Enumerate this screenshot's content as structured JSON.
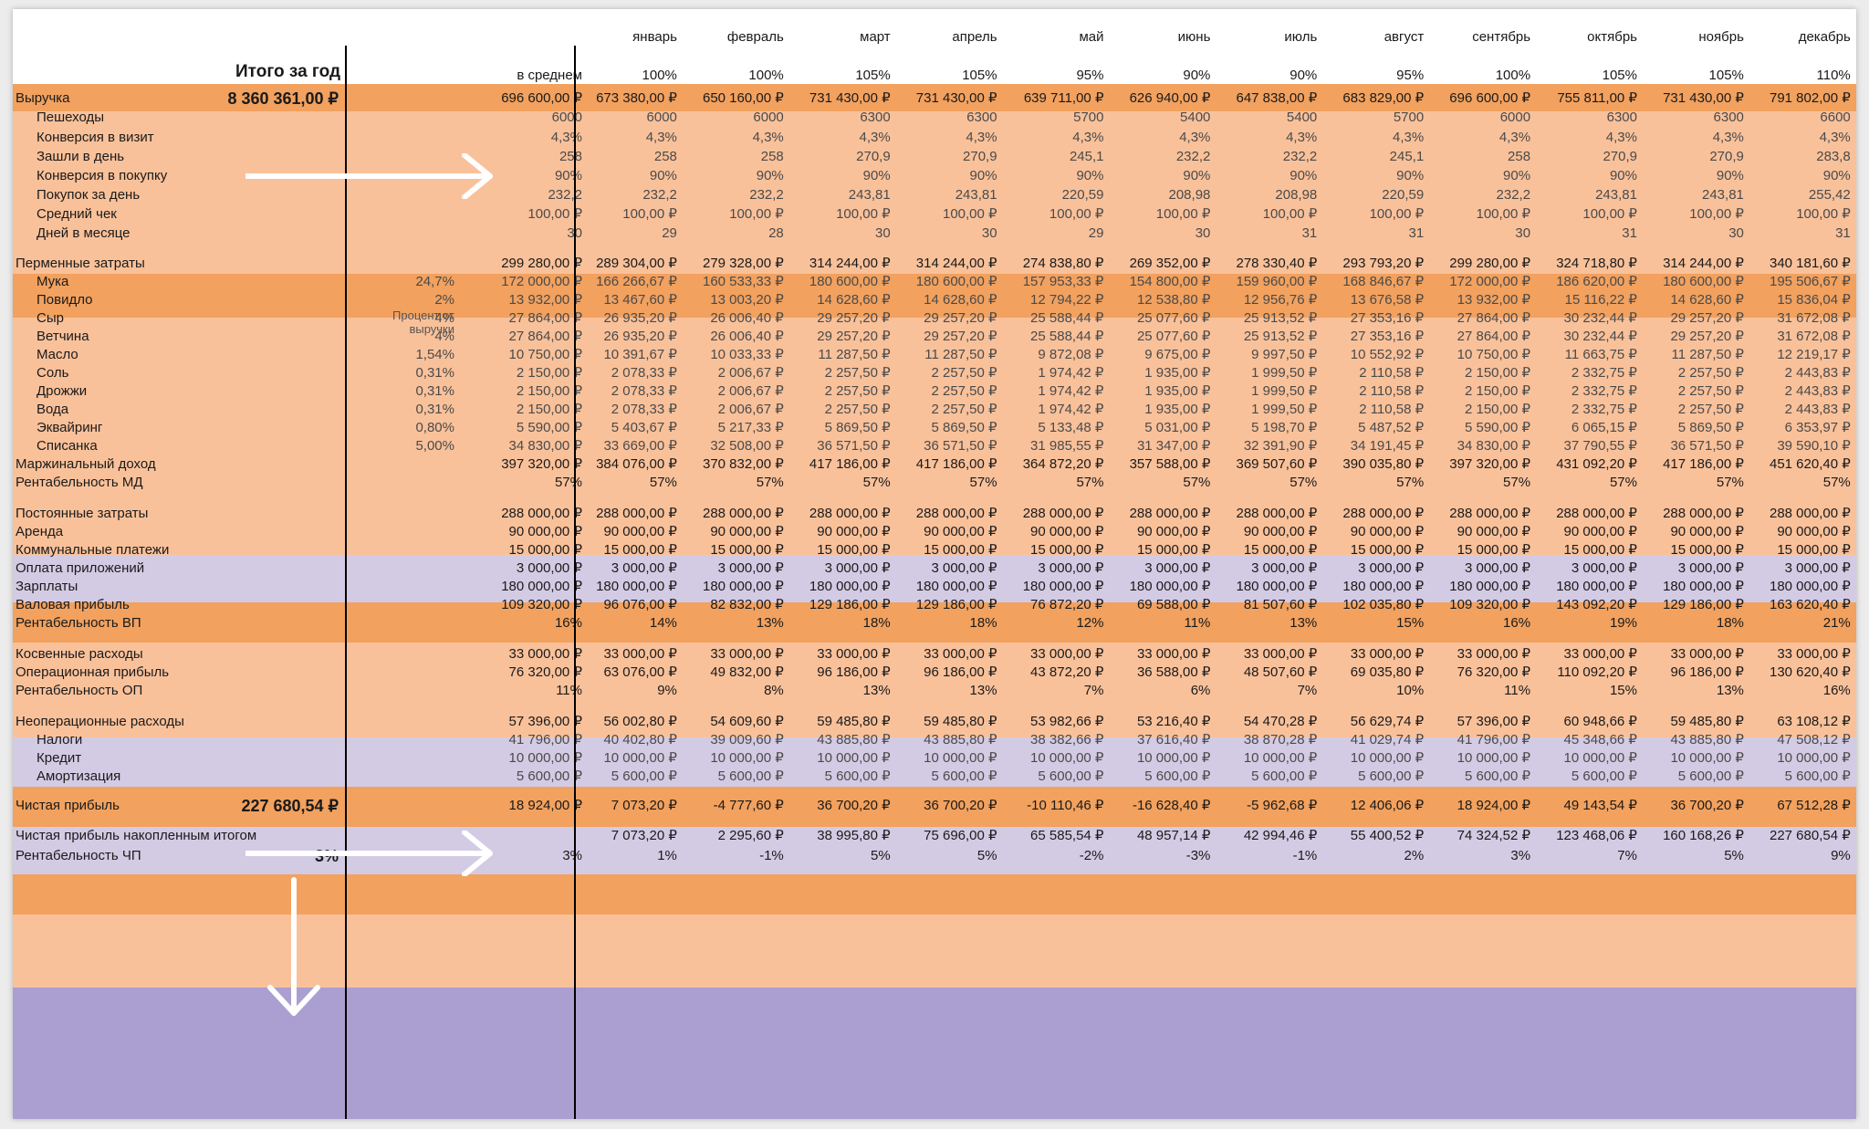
{
  "header": {
    "total_label": "Итого за год",
    "avg_label": "в среднем",
    "months": [
      "январь",
      "февраль",
      "март",
      "апрель",
      "май",
      "июнь",
      "июль",
      "август",
      "сентябрь",
      "октябрь",
      "ноябрь",
      "декабрь"
    ],
    "seasonality": [
      "100%",
      "100%",
      "105%",
      "105%",
      "95%",
      "90%",
      "90%",
      "95%",
      "100%",
      "105%",
      "105%",
      "110%"
    ]
  },
  "percent_header": "Процент от выручки",
  "rows": [
    {
      "label": "Выручка",
      "style": "main",
      "total": "8 360 361,00 ₽",
      "pct": "",
      "avg": "696 600,00 ₽",
      "values": [
        "673 380,00 ₽",
        "650 160,00 ₽",
        "731 430,00 ₽",
        "731 430,00 ₽",
        "639 711,00 ₽",
        "626 940,00 ₽",
        "647 838,00 ₽",
        "683 829,00 ₽",
        "696 600,00 ₽",
        "755 811,00 ₽",
        "731 430,00 ₽",
        "791 802,00 ₽"
      ]
    },
    {
      "label": "Пешеходы",
      "style": "sub",
      "total": "",
      "pct": "",
      "avg": "6000",
      "values": [
        "6000",
        "6000",
        "6300",
        "6300",
        "5700",
        "5400",
        "5400",
        "5700",
        "6000",
        "6300",
        "6300",
        "6600"
      ]
    },
    {
      "label": "Конверсия в визит",
      "style": "sub",
      "total": "",
      "pct": "",
      "avg": "4,3%",
      "values": [
        "4,3%",
        "4,3%",
        "4,3%",
        "4,3%",
        "4,3%",
        "4,3%",
        "4,3%",
        "4,3%",
        "4,3%",
        "4,3%",
        "4,3%",
        "4,3%"
      ]
    },
    {
      "label": "Зашли в день",
      "style": "sub",
      "total": "",
      "pct": "",
      "avg": "258",
      "values": [
        "258",
        "258",
        "270,9",
        "270,9",
        "245,1",
        "232,2",
        "232,2",
        "245,1",
        "258",
        "270,9",
        "270,9",
        "283,8"
      ]
    },
    {
      "label": "Конверсия в покупку",
      "style": "sub",
      "total": "",
      "pct": "",
      "avg": "90%",
      "values": [
        "90%",
        "90%",
        "90%",
        "90%",
        "90%",
        "90%",
        "90%",
        "90%",
        "90%",
        "90%",
        "90%",
        "90%"
      ]
    },
    {
      "label": "Покупок за день",
      "style": "sub",
      "total": "",
      "pct": "",
      "avg": "232,2",
      "values": [
        "232,2",
        "232,2",
        "243,81",
        "243,81",
        "220,59",
        "208,98",
        "208,98",
        "220,59",
        "232,2",
        "243,81",
        "243,81",
        "255,42"
      ]
    },
    {
      "label": "Средний чек",
      "style": "sub",
      "total": "",
      "pct": "",
      "avg": "100,00 ₽",
      "values": [
        "100,00 ₽",
        "100,00 ₽",
        "100,00 ₽",
        "100,00 ₽",
        "100,00 ₽",
        "100,00 ₽",
        "100,00 ₽",
        "100,00 ₽",
        "100,00 ₽",
        "100,00 ₽",
        "100,00 ₽",
        "100,00 ₽"
      ]
    },
    {
      "label": "Дней в месяце",
      "style": "sub",
      "total": "",
      "pct": "",
      "avg": "30",
      "values": [
        "29",
        "28",
        "30",
        "30",
        "29",
        "30",
        "31",
        "31",
        "30",
        "31",
        "30",
        "31"
      ]
    },
    {
      "label": "Перменные затраты",
      "style": "main",
      "total": "",
      "pct": "",
      "avg": "299 280,00 ₽",
      "values": [
        "289 304,00 ₽",
        "279 328,00 ₽",
        "314 244,00 ₽",
        "314 244,00 ₽",
        "274 838,80 ₽",
        "269 352,00 ₽",
        "278 330,40 ₽",
        "293 793,20 ₽",
        "299 280,00 ₽",
        "324 718,80 ₽",
        "314 244,00 ₽",
        "340 181,60 ₽"
      ]
    },
    {
      "label": "Мука",
      "style": "sub",
      "total": "",
      "pct": "24,7%",
      "avg": "172 000,00 ₽",
      "values": [
        "166 266,67 ₽",
        "160 533,33 ₽",
        "180 600,00 ₽",
        "180 600,00 ₽",
        "157 953,33 ₽",
        "154 800,00 ₽",
        "159 960,00 ₽",
        "168 846,67 ₽",
        "172 000,00 ₽",
        "186 620,00 ₽",
        "180 600,00 ₽",
        "195 506,67 ₽"
      ]
    },
    {
      "label": "Повидло",
      "style": "sub",
      "total": "",
      "pct": "2%",
      "avg": "13 932,00 ₽",
      "values": [
        "13 467,60 ₽",
        "13 003,20 ₽",
        "14 628,60 ₽",
        "14 628,60 ₽",
        "12 794,22 ₽",
        "12 538,80 ₽",
        "12 956,76 ₽",
        "13 676,58 ₽",
        "13 932,00 ₽",
        "15 116,22 ₽",
        "14 628,60 ₽",
        "15 836,04 ₽"
      ]
    },
    {
      "label": "Сыр",
      "style": "sub",
      "total": "",
      "pct": "4%",
      "avg": "27 864,00 ₽",
      "values": [
        "26 935,20 ₽",
        "26 006,40 ₽",
        "29 257,20 ₽",
        "29 257,20 ₽",
        "25 588,44 ₽",
        "25 077,60 ₽",
        "25 913,52 ₽",
        "27 353,16 ₽",
        "27 864,00 ₽",
        "30 232,44 ₽",
        "29 257,20 ₽",
        "31 672,08 ₽"
      ]
    },
    {
      "label": "Ветчина",
      "style": "sub",
      "total": "",
      "pct": "4%",
      "avg": "27 864,00 ₽",
      "values": [
        "26 935,20 ₽",
        "26 006,40 ₽",
        "29 257,20 ₽",
        "29 257,20 ₽",
        "25 588,44 ₽",
        "25 077,60 ₽",
        "25 913,52 ₽",
        "27 353,16 ₽",
        "27 864,00 ₽",
        "30 232,44 ₽",
        "29 257,20 ₽",
        "31 672,08 ₽"
      ]
    },
    {
      "label": "Масло",
      "style": "sub",
      "total": "",
      "pct": "1,54%",
      "avg": "10 750,00 ₽",
      "values": [
        "10 391,67 ₽",
        "10 033,33 ₽",
        "11 287,50 ₽",
        "11 287,50 ₽",
        "9 872,08 ₽",
        "9 675,00 ₽",
        "9 997,50 ₽",
        "10 552,92 ₽",
        "10 750,00 ₽",
        "11 663,75 ₽",
        "11 287,50 ₽",
        "12 219,17 ₽"
      ]
    },
    {
      "label": "Соль",
      "style": "sub",
      "total": "",
      "pct": "0,31%",
      "avg": "2 150,00 ₽",
      "values": [
        "2 078,33 ₽",
        "2 006,67 ₽",
        "2 257,50 ₽",
        "2 257,50 ₽",
        "1 974,42 ₽",
        "1 935,00 ₽",
        "1 999,50 ₽",
        "2 110,58 ₽",
        "2 150,00 ₽",
        "2 332,75 ₽",
        "2 257,50 ₽",
        "2 443,83 ₽"
      ]
    },
    {
      "label": "Дрожжи",
      "style": "sub",
      "total": "",
      "pct": "0,31%",
      "avg": "2 150,00 ₽",
      "values": [
        "2 078,33 ₽",
        "2 006,67 ₽",
        "2 257,50 ₽",
        "2 257,50 ₽",
        "1 974,42 ₽",
        "1 935,00 ₽",
        "1 999,50 ₽",
        "2 110,58 ₽",
        "2 150,00 ₽",
        "2 332,75 ₽",
        "2 257,50 ₽",
        "2 443,83 ₽"
      ]
    },
    {
      "label": "Вода",
      "style": "sub",
      "total": "",
      "pct": "0,31%",
      "avg": "2 150,00 ₽",
      "values": [
        "2 078,33 ₽",
        "2 006,67 ₽",
        "2 257,50 ₽",
        "2 257,50 ₽",
        "1 974,42 ₽",
        "1 935,00 ₽",
        "1 999,50 ₽",
        "2 110,58 ₽",
        "2 150,00 ₽",
        "2 332,75 ₽",
        "2 257,50 ₽",
        "2 443,83 ₽"
      ]
    },
    {
      "label": "Эквайринг",
      "style": "sub",
      "total": "",
      "pct": "0,80%",
      "avg": "5 590,00 ₽",
      "values": [
        "5 403,67 ₽",
        "5 217,33 ₽",
        "5 869,50 ₽",
        "5 869,50 ₽",
        "5 133,48 ₽",
        "5 031,00 ₽",
        "5 198,70 ₽",
        "5 487,52 ₽",
        "5 590,00 ₽",
        "6 065,15 ₽",
        "5 869,50 ₽",
        "6 353,97 ₽"
      ]
    },
    {
      "label": "Списанка",
      "style": "sub",
      "total": "",
      "pct": "5,00%",
      "avg": "34 830,00 ₽",
      "values": [
        "33 669,00 ₽",
        "32 508,00 ₽",
        "36 571,50 ₽",
        "36 571,50 ₽",
        "31 985,55 ₽",
        "31 347,00 ₽",
        "32 391,90 ₽",
        "34 191,45 ₽",
        "34 830,00 ₽",
        "37 790,55 ₽",
        "36 571,50 ₽",
        "39 590,10 ₽"
      ]
    },
    {
      "label": "Маржинальный доход",
      "style": "lav",
      "total": "",
      "pct": "",
      "avg": "397 320,00 ₽",
      "values": [
        "384 076,00 ₽",
        "370 832,00 ₽",
        "417 186,00 ₽",
        "417 186,00 ₽",
        "364 872,20 ₽",
        "357 588,00 ₽",
        "369 507,60 ₽",
        "390 035,80 ₽",
        "397 320,00 ₽",
        "431 092,20 ₽",
        "417 186,00 ₽",
        "451 620,40 ₽"
      ]
    },
    {
      "label": "Рентабельность МД",
      "style": "lav",
      "total": "",
      "pct": "",
      "avg": "57%",
      "values": [
        "57%",
        "57%",
        "57%",
        "57%",
        "57%",
        "57%",
        "57%",
        "57%",
        "57%",
        "57%",
        "57%",
        "57%"
      ]
    },
    {
      "label": "Постоянные затраты",
      "style": "main",
      "total": "",
      "pct": "",
      "avg": "288 000,00 ₽",
      "values": [
        "288 000,00 ₽",
        "288 000,00 ₽",
        "288 000,00 ₽",
        "288 000,00 ₽",
        "288 000,00 ₽",
        "288 000,00 ₽",
        "288 000,00 ₽",
        "288 000,00 ₽",
        "288 000,00 ₽",
        "288 000,00 ₽",
        "288 000,00 ₽",
        "288 000,00 ₽"
      ]
    },
    {
      "label": "Аренда",
      "style": "sub2",
      "total": "",
      "pct": "",
      "avg": "90 000,00 ₽",
      "values": [
        "90 000,00 ₽",
        "90 000,00 ₽",
        "90 000,00 ₽",
        "90 000,00 ₽",
        "90 000,00 ₽",
        "90 000,00 ₽",
        "90 000,00 ₽",
        "90 000,00 ₽",
        "90 000,00 ₽",
        "90 000,00 ₽",
        "90 000,00 ₽",
        "90 000,00 ₽"
      ]
    },
    {
      "label": "Коммунальные платежи",
      "style": "sub2",
      "total": "",
      "pct": "",
      "avg": "15 000,00 ₽",
      "values": [
        "15 000,00 ₽",
        "15 000,00 ₽",
        "15 000,00 ₽",
        "15 000,00 ₽",
        "15 000,00 ₽",
        "15 000,00 ₽",
        "15 000,00 ₽",
        "15 000,00 ₽",
        "15 000,00 ₽",
        "15 000,00 ₽",
        "15 000,00 ₽",
        "15 000,00 ₽"
      ]
    },
    {
      "label": "Оплата приложений",
      "style": "sub2",
      "total": "",
      "pct": "",
      "avg": "3 000,00 ₽",
      "values": [
        "3 000,00 ₽",
        "3 000,00 ₽",
        "3 000,00 ₽",
        "3 000,00 ₽",
        "3 000,00 ₽",
        "3 000,00 ₽",
        "3 000,00 ₽",
        "3 000,00 ₽",
        "3 000,00 ₽",
        "3 000,00 ₽",
        "3 000,00 ₽",
        "3 000,00 ₽"
      ]
    },
    {
      "label": "Зарплаты",
      "style": "sub2",
      "total": "",
      "pct": "",
      "avg": "180 000,00 ₽",
      "values": [
        "180 000,00 ₽",
        "180 000,00 ₽",
        "180 000,00 ₽",
        "180 000,00 ₽",
        "180 000,00 ₽",
        "180 000,00 ₽",
        "180 000,00 ₽",
        "180 000,00 ₽",
        "180 000,00 ₽",
        "180 000,00 ₽",
        "180 000,00 ₽",
        "180 000,00 ₽"
      ]
    },
    {
      "label": "Валовая прибыль",
      "style": "lav",
      "total": "",
      "pct": "",
      "avg": "109 320,00 ₽",
      "values": [
        "96 076,00 ₽",
        "82 832,00 ₽",
        "129 186,00 ₽",
        "129 186,00 ₽",
        "76 872,20 ₽",
        "69 588,00 ₽",
        "81 507,60 ₽",
        "102 035,80 ₽",
        "109 320,00 ₽",
        "143 092,20 ₽",
        "129 186,00 ₽",
        "163 620,40 ₽"
      ]
    },
    {
      "label": "Рентабельность ВП",
      "style": "lav",
      "total": "",
      "pct": "",
      "avg": "16%",
      "values": [
        "14%",
        "13%",
        "18%",
        "18%",
        "12%",
        "11%",
        "13%",
        "15%",
        "16%",
        "19%",
        "18%",
        "21%"
      ]
    },
    {
      "label": "Косвенные расходы",
      "style": "main",
      "total": "",
      "pct": "",
      "avg": "33 000,00 ₽",
      "values": [
        "33 000,00 ₽",
        "33 000,00 ₽",
        "33 000,00 ₽",
        "33 000,00 ₽",
        "33 000,00 ₽",
        "33 000,00 ₽",
        "33 000,00 ₽",
        "33 000,00 ₽",
        "33 000,00 ₽",
        "33 000,00 ₽",
        "33 000,00 ₽",
        "33 000,00 ₽"
      ]
    },
    {
      "label": "Операционная прибыль",
      "style": "lav",
      "total": "",
      "pct": "",
      "avg": "76 320,00 ₽",
      "values": [
        "63 076,00 ₽",
        "49 832,00 ₽",
        "96 186,00 ₽",
        "96 186,00 ₽",
        "43 872,20 ₽",
        "36 588,00 ₽",
        "48 507,60 ₽",
        "69 035,80 ₽",
        "76 320,00 ₽",
        "110 092,20 ₽",
        "96 186,00 ₽",
        "130 620,40 ₽"
      ]
    },
    {
      "label": "Рентабельность ОП",
      "style": "lav",
      "total": "",
      "pct": "",
      "avg": "11%",
      "values": [
        "9%",
        "8%",
        "13%",
        "13%",
        "7%",
        "6%",
        "7%",
        "10%",
        "11%",
        "15%",
        "13%",
        "16%"
      ]
    },
    {
      "label": "Неоперационные расходы",
      "style": "main",
      "total": "",
      "pct": "",
      "avg": "57 396,00 ₽",
      "values": [
        "56 002,80 ₽",
        "54 609,60 ₽",
        "59 485,80 ₽",
        "59 485,80 ₽",
        "53 982,66 ₽",
        "53 216,40 ₽",
        "54 470,28 ₽",
        "56 629,74 ₽",
        "57 396,00 ₽",
        "60 948,66 ₽",
        "59 485,80 ₽",
        "63 108,12 ₽"
      ]
    },
    {
      "label": "Налоги",
      "style": "sub",
      "total": "",
      "pct": "",
      "avg": "41 796,00 ₽",
      "values": [
        "40 402,80 ₽",
        "39 009,60 ₽",
        "43 885,80 ₽",
        "43 885,80 ₽",
        "38 382,66 ₽",
        "37 616,40 ₽",
        "38 870,28 ₽",
        "41 029,74 ₽",
        "41 796,00 ₽",
        "45 348,66 ₽",
        "43 885,80 ₽",
        "47 508,12 ₽"
      ]
    },
    {
      "label": "Кредит",
      "style": "sub",
      "total": "",
      "pct": "",
      "avg": "10 000,00 ₽",
      "values": [
        "10 000,00 ₽",
        "10 000,00 ₽",
        "10 000,00 ₽",
        "10 000,00 ₽",
        "10 000,00 ₽",
        "10 000,00 ₽",
        "10 000,00 ₽",
        "10 000,00 ₽",
        "10 000,00 ₽",
        "10 000,00 ₽",
        "10 000,00 ₽",
        "10 000,00 ₽"
      ]
    },
    {
      "label": "Амортизация",
      "style": "sub",
      "total": "",
      "pct": "",
      "avg": "5 600,00 ₽",
      "values": [
        "5 600,00 ₽",
        "5 600,00 ₽",
        "5 600,00 ₽",
        "5 600,00 ₽",
        "5 600,00 ₽",
        "5 600,00 ₽",
        "5 600,00 ₽",
        "5 600,00 ₽",
        "5 600,00 ₽",
        "5 600,00 ₽",
        "5 600,00 ₽",
        "5 600,00 ₽"
      ]
    },
    {
      "label": "Чистая прибыль",
      "style": "purple",
      "total": "227 680,54 ₽",
      "pct": "",
      "avg": "18 924,00 ₽",
      "values": [
        "7 073,20 ₽",
        "-4 777,60 ₽",
        "36 700,20 ₽",
        "36 700,20 ₽",
        "-10 110,46 ₽",
        "-16 628,40 ₽",
        "-5 962,68 ₽",
        "12 406,06 ₽",
        "18 924,00 ₽",
        "49 143,54 ₽",
        "36 700,20 ₽",
        "67 512,28 ₽"
      ]
    },
    {
      "label": "Чистая прибыль накопленным итогом",
      "style": "purple",
      "total": "",
      "pct": "",
      "avg": "",
      "values": [
        "7 073,20 ₽",
        "2 295,60 ₽",
        "38 995,80 ₽",
        "75 696,00 ₽",
        "65 585,54 ₽",
        "48 957,14 ₽",
        "42 994,46 ₽",
        "55 400,52 ₽",
        "74 324,52 ₽",
        "123 468,06 ₽",
        "160 168,26 ₽",
        "227 680,54 ₽"
      ]
    },
    {
      "label": "Рентабельность ЧП",
      "style": "purple",
      "total": "3%",
      "pct": "",
      "avg": "3%",
      "values": [
        "1%",
        "-1%",
        "5%",
        "5%",
        "-2%",
        "-3%",
        "-1%",
        "2%",
        "3%",
        "7%",
        "5%",
        "9%"
      ]
    }
  ],
  "colors": {
    "main": "#f2a15e",
    "sub": "#f9c19a",
    "lav": "#d3cbe4",
    "purple": "#aa9fd0",
    "header": "#ffffff"
  },
  "icons": [
    "arrow-right-icon",
    "arrow-right-icon",
    "arrow-down-icon"
  ]
}
